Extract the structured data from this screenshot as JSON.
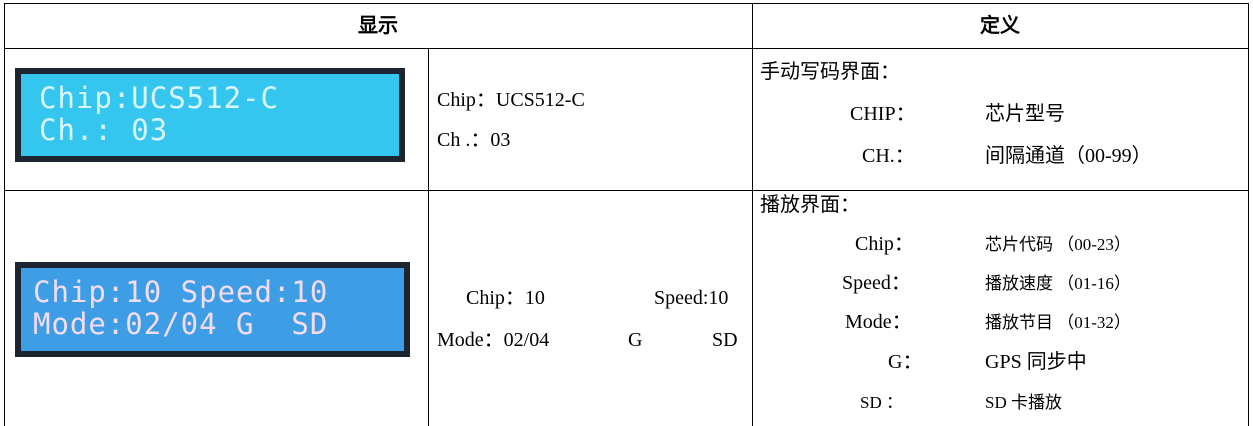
{
  "header": {
    "display": "显示",
    "definition": "定义"
  },
  "rows": [
    {
      "lcd": [
        "Chip:UCS512-C",
        "Ch.: 03"
      ],
      "text": [
        "Chip：UCS512-C",
        "Ch .：03"
      ],
      "definition": {
        "title": "手动写码界面：",
        "items": [
          {
            "key": "CHIP：",
            "value": "芯片型号"
          },
          {
            "key": "CH.：",
            "value": "间隔通道（00-99）"
          }
        ]
      }
    },
    {
      "lcd": [
        "Chip:10 Speed:10",
        "Mode:02/04 G  SD"
      ],
      "text": [
        "Chip：10",
        "Speed:10",
        "Mode：02/04",
        "G",
        "SD"
      ],
      "definition": {
        "title": "播放界面：",
        "items": [
          {
            "key": "Chip：",
            "value": "芯片代码 （00-23）"
          },
          {
            "key": "Speed：",
            "value": "播放速度 （01-16）"
          },
          {
            "key": "Mode：",
            "value": "播放节目 （01-32）"
          },
          {
            "key": "G：",
            "value": "GPS 同步中"
          },
          {
            "key": "SD ：",
            "value": "SD 卡播放"
          }
        ]
      }
    }
  ]
}
